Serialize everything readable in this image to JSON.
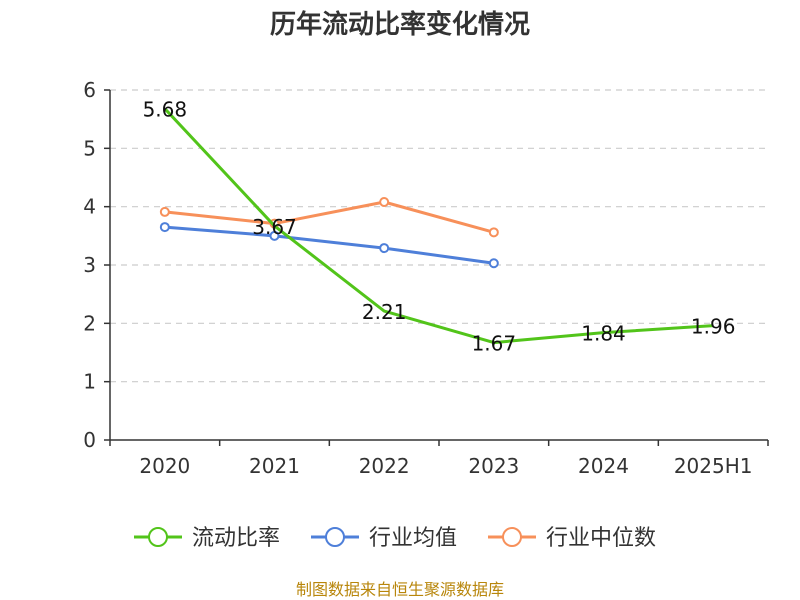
{
  "chart_data": {
    "type": "line",
    "title": "历年流动比率变化情况",
    "categories": [
      "2020",
      "2021",
      "2022",
      "2023",
      "2024",
      "2025H1"
    ],
    "ylim": [
      0,
      6
    ],
    "yticks": [
      0,
      1,
      2,
      3,
      4,
      5,
      6
    ],
    "grid": true,
    "legend_position": "bottom",
    "series": [
      {
        "name": "流动比率",
        "color": "#52c41a",
        "values": [
          5.68,
          3.67,
          2.21,
          1.67,
          1.84,
          1.96
        ],
        "labels": [
          "5.68",
          "3.67",
          "2.21",
          "1.67",
          "1.84",
          "1.96"
        ]
      },
      {
        "name": "行业均值",
        "color": "#4e7fd9",
        "values": [
          3.65,
          3.5,
          3.29,
          3.03,
          null,
          null
        ]
      },
      {
        "name": "行业中位数",
        "color": "#f7905a",
        "values": [
          3.91,
          3.71,
          4.08,
          3.56,
          null,
          null
        ]
      }
    ]
  },
  "source": "制图数据来自恒生聚源数据库"
}
